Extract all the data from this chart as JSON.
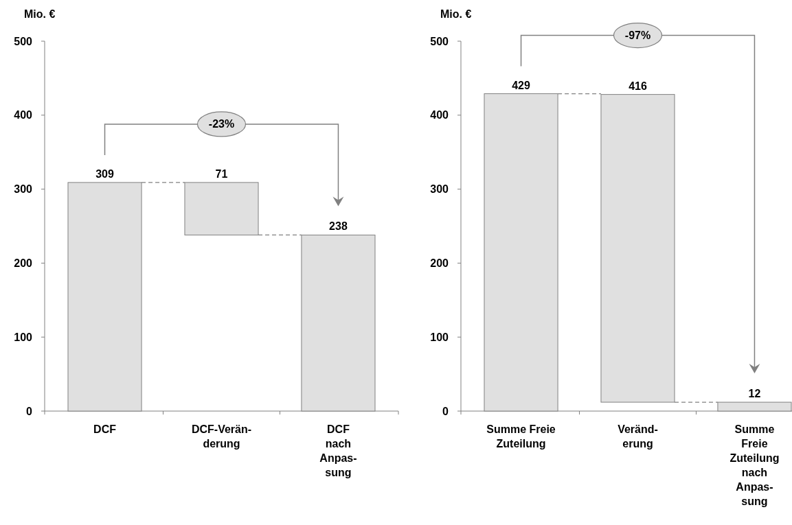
{
  "chart_data": [
    {
      "type": "bar",
      "ylabel": "Mio. €",
      "categories": [
        "DCF",
        "DCF-Verän-\nderung",
        "DCF\nnach\nAnpas-\nsung"
      ],
      "values": [
        309,
        71,
        238
      ],
      "base": [
        0,
        238,
        0
      ],
      "color": "#e0e0e0",
      "ylim": [
        0,
        500
      ],
      "yticks": [
        0,
        100,
        200,
        300,
        400,
        500
      ],
      "data_labels": true,
      "annotations": [
        "-23%"
      ]
    },
    {
      "type": "bar",
      "ylabel": "Mio. €",
      "categories": [
        "Summe Freie\nZuteilung",
        "Veränd-\nerung",
        "Summe\nFreie\nZuteilung\nnach\nAnpas-\nsung"
      ],
      "values": [
        429,
        416,
        12
      ],
      "base": [
        0,
        12,
        0
      ],
      "color": "#e0e0e0",
      "ylim": [
        0,
        500
      ],
      "yticks": [
        0,
        100,
        200,
        300,
        400,
        500
      ],
      "data_labels": true,
      "annotations": [
        "-97%"
      ]
    }
  ]
}
